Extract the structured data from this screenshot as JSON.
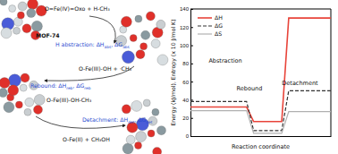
{
  "chart_data": {
    "type": "line",
    "y_label": "Energy (kJ/mol), Entropy (x 10 J/mol K)",
    "x_label": "Reaction coordinate",
    "annotations": [
      "Abstraction",
      "Rebound",
      "Detachment"
    ],
    "x": [
      0,
      1.6,
      1.8,
      2.6,
      2.8,
      4
    ],
    "series": [
      {
        "name": "ΔH",
        "color": "#e8443a",
        "line_style": "solid",
        "values": [
          32,
          32,
          16,
          16,
          130,
          130
        ]
      },
      {
        "name": "ΔG",
        "color": "#333333",
        "line_style": "dashed",
        "values": [
          38,
          38,
          6,
          6,
          50,
          50
        ]
      },
      {
        "name": "ΔS",
        "color": "#b0b0b0",
        "line_style": "solid",
        "values": [
          28,
          28,
          3,
          3,
          27,
          27
        ]
      }
    ],
    "xlim": [
      0,
      4
    ],
    "ylim": [
      0,
      140
    ],
    "yticks": [
      0,
      20,
      40,
      60,
      80,
      100,
      120,
      140
    ],
    "tick_labels": "y",
    "legend": "upper left",
    "grid": false
  },
  "diagram": {
    "states": [
      "O=Fe(IV)=Oxo + H-CH₃",
      "O-Fe(III)-OH + ·CH₃",
      "O-Fe(III)-OH-CH₃",
      "O-Fe(II) + CH₃OH"
    ],
    "framework": "MOF-74",
    "steps": [
      [
        "H abstraction: ΔH",
        "abs",
        ", ΔG",
        "abs"
      ],
      [
        "Rebound: ΔH",
        "reb",
        ", ΔG",
        "reb"
      ],
      [
        "Detachment: ΔH",
        "det",
        ", ΔG",
        "det"
      ]
    ]
  }
}
